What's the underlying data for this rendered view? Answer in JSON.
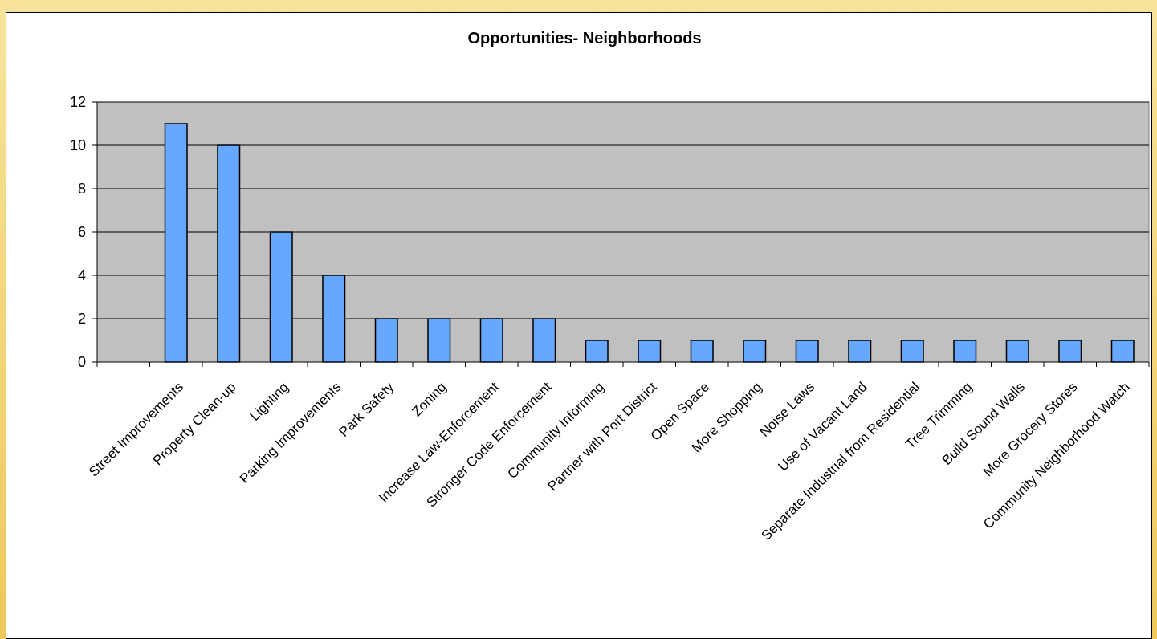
{
  "chart_data": {
    "type": "bar",
    "title": "Opportunities- Neighborhoods",
    "xlabel": "",
    "ylabel": "",
    "ylim": [
      0,
      12
    ],
    "yticks": [
      0,
      2,
      4,
      6,
      8,
      10,
      12
    ],
    "grid": true,
    "legend": "none",
    "colors": {
      "bar": "#66a8ff",
      "plot_bg": "#c0c0c0",
      "gridline": "#000000"
    },
    "categories": [
      "Street Improvements",
      "Property Clean-up",
      "Lighting",
      "Parking Improvements",
      "Park Safety",
      "Zoning",
      "Increase Law-Enforcement",
      "Stronger Code Enforcement",
      "Community Informing",
      "Partner with Port District",
      "Open Space",
      "More Shopping",
      "Noise Laws",
      "Use of Vacant Land",
      "Separate Industrial from Residential",
      "Tree Trimming",
      "Build Sound Walls",
      "More Grocery Stores",
      "Community Neighborhood Watch"
    ],
    "values": [
      11,
      10,
      6,
      4,
      2,
      2,
      2,
      2,
      1,
      1,
      1,
      1,
      1,
      1,
      1,
      1,
      1,
      1,
      1
    ]
  }
}
